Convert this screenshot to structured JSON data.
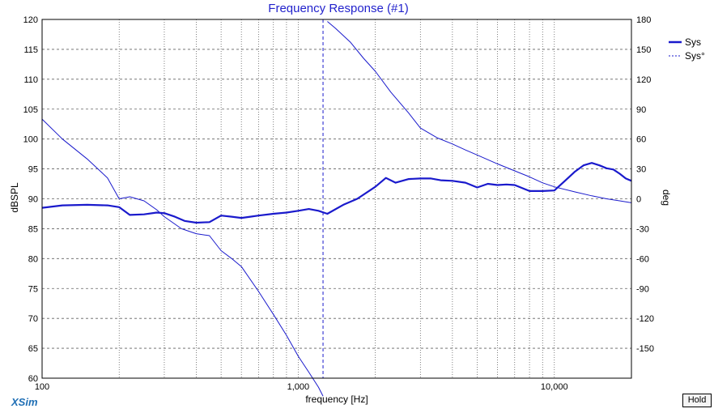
{
  "app": {
    "brand": "XSim",
    "hold_label": "Hold"
  },
  "colors": {
    "series": "#1a1acc",
    "title": "#2222cc",
    "grid": "#606060",
    "axis": "#000000"
  },
  "chart_data": {
    "type": "line",
    "title": "Frequency Response (#1)",
    "xlabel": "frequency [Hz]",
    "ylabel": "dBSPL",
    "y2label": "deg",
    "xscale": "log",
    "xlim": [
      100,
      20000
    ],
    "ylim": [
      60,
      120
    ],
    "y2lim": [
      -180,
      180
    ],
    "xticks": [
      {
        "value": 100,
        "label": "100"
      },
      {
        "value": 1000,
        "label": "1,000"
      },
      {
        "value": 10000,
        "label": "10,000"
      }
    ],
    "yticks": [
      60,
      65,
      70,
      75,
      80,
      85,
      90,
      95,
      100,
      105,
      110,
      115,
      120
    ],
    "y2ticks": [
      -150,
      -120,
      -90,
      -60,
      -30,
      0,
      30,
      60,
      90,
      120,
      150,
      180
    ],
    "grid": true,
    "legend_position": "top-right",
    "series": [
      {
        "name": "Sys",
        "axis": "left",
        "style": "solid-thick",
        "x": [
          100,
          120,
          150,
          180,
          200,
          220,
          250,
          280,
          300,
          330,
          360,
          400,
          450,
          500,
          550,
          600,
          650,
          700,
          800,
          900,
          1000,
          1100,
          1200,
          1300,
          1500,
          1700,
          2000,
          2200,
          2400,
          2700,
          3000,
          3300,
          3600,
          4000,
          4500,
          5000,
          5500,
          6000,
          6500,
          7000,
          8000,
          9000,
          10000,
          11000,
          12000,
          13000,
          14000,
          15000,
          16000,
          17000,
          18000,
          19000,
          20000
        ],
        "y": [
          88.5,
          88.9,
          89.0,
          88.9,
          88.6,
          87.3,
          87.4,
          87.7,
          87.6,
          87.0,
          86.3,
          86.0,
          86.1,
          87.2,
          87.0,
          86.8,
          87.0,
          87.2,
          87.5,
          87.7,
          88.0,
          88.3,
          88.0,
          87.5,
          89.0,
          90.0,
          92.0,
          93.5,
          92.7,
          93.3,
          93.4,
          93.4,
          93.1,
          93.0,
          92.7,
          91.9,
          92.5,
          92.3,
          92.4,
          92.3,
          91.3,
          91.3,
          91.4,
          93.0,
          94.5,
          95.6,
          96.0,
          95.6,
          95.1,
          94.9,
          94.2,
          93.4,
          93.0
        ]
      },
      {
        "name": "Sys°",
        "axis": "right",
        "style": "solid-thin",
        "x": [
          100,
          120,
          150,
          180,
          200,
          220,
          250,
          280,
          300,
          350,
          400,
          450,
          500,
          550,
          600,
          700,
          800,
          900,
          1000,
          1100,
          1200,
          1250,
          1300,
          1400,
          1600,
          1800,
          2000,
          2300,
          2700,
          3000,
          3500,
          4000,
          4500,
          5000,
          6000,
          7000,
          8000,
          9000,
          10000,
          12000,
          14000,
          16000,
          18000,
          20000
        ],
        "y": [
          80,
          60,
          40,
          21,
          0,
          2,
          -2,
          -11,
          -18,
          -30,
          -35,
          -37,
          -52,
          -60,
          -68,
          -93,
          -116,
          -137,
          -158,
          -174,
          -189,
          -198,
          178,
          171,
          157,
          141,
          128,
          107,
          86,
          71,
          61,
          55,
          49,
          44,
          35,
          28,
          22,
          16,
          12,
          7,
          3,
          0,
          -2,
          -4
        ]
      }
    ],
    "markers": [
      {
        "x": 1250,
        "style": "dashed"
      }
    ]
  }
}
